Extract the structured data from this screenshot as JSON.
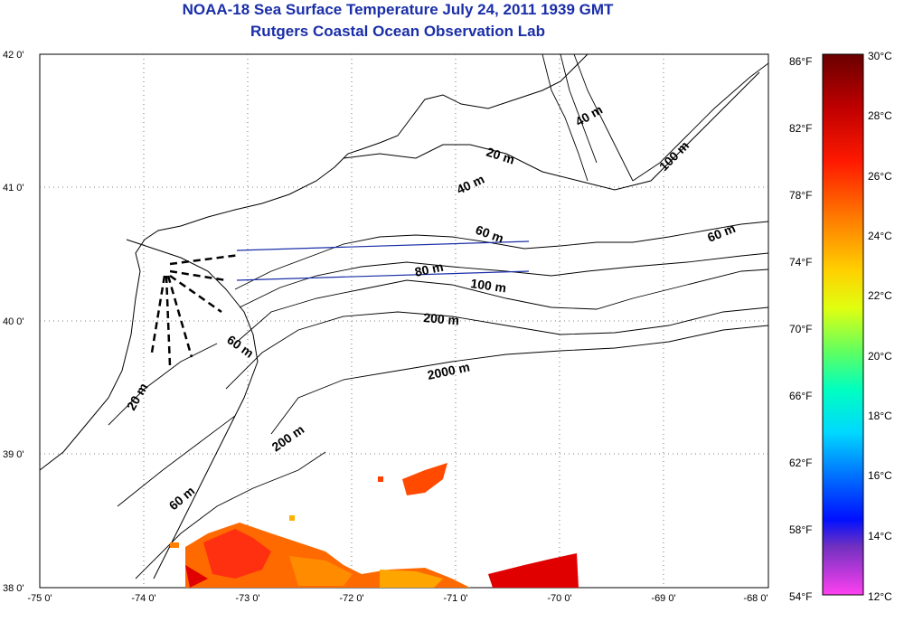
{
  "header": {
    "title": "NOAA-18 Sea Surface Temperature July 24, 2011 1939 GMT",
    "subtitle": "Rutgers Coastal Ocean Observation Lab"
  },
  "map": {
    "lon_ticks": [
      "-75 0'",
      "-74 0'",
      "-73 0'",
      "-72 0'",
      "-71 0'",
      "-70 0'",
      "-69 0'",
      "-68 0'"
    ],
    "lat_ticks": [
      "42 0'",
      "41 0'",
      "40 0'",
      "39 0'",
      "38 0'"
    ],
    "lon_range": [
      -75,
      -68
    ],
    "lat_range": [
      38,
      42
    ],
    "grid": "dotted",
    "contour_labels": [
      "40 m",
      "20 m",
      "100 m",
      "40 m",
      "60 m",
      "60 m",
      "80 m",
      "100 m",
      "200 m",
      "60 m",
      "2000 m",
      "20 m",
      "200 m",
      "60 m"
    ]
  },
  "colorbar": {
    "fahrenheit": [
      "86°F",
      "82°F",
      "78°F",
      "74°F",
      "70°F",
      "66°F",
      "62°F",
      "58°F",
      "54°F"
    ],
    "celsius": [
      "30°C",
      "28°C",
      "26°C",
      "24°C",
      "22°C",
      "20°C",
      "18°C",
      "16°C",
      "14°C",
      "12°C"
    ],
    "colors": [
      "#7a0000",
      "#c80000",
      "#ff2000",
      "#ff7000",
      "#ffc000",
      "#e8ff00",
      "#80ff30",
      "#00ff90",
      "#00ffff",
      "#00a0ff",
      "#0040ff",
      "#0000e0",
      "#8040c0",
      "#ff40e0"
    ]
  }
}
